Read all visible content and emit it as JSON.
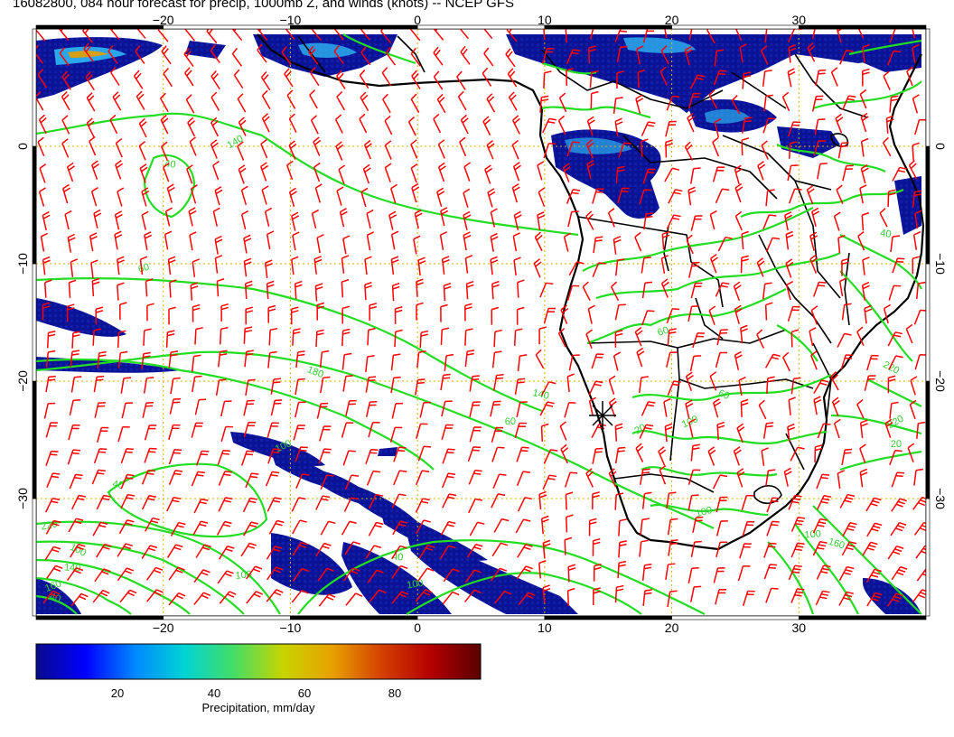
{
  "title": "16082800, 084 hour forecast for precip, 1000mb Z, and winds (knots) -- NCEP GFS",
  "axes": {
    "lon_ticks": [
      -20,
      -10,
      0,
      10,
      20,
      30
    ],
    "lat_ticks": [
      0,
      -10,
      -20,
      -30
    ],
    "lon_range": [
      -30,
      40
    ],
    "lat_range": [
      -40,
      10
    ]
  },
  "contour_labels": [
    "140",
    "40",
    "60",
    "180",
    "60",
    "100",
    "40",
    "220",
    "100",
    "140",
    "160",
    "160",
    "100",
    "220",
    "40",
    "100",
    "60",
    "20",
    "100",
    "140",
    "100",
    "220",
    "40",
    "60",
    "40",
    "100",
    "20"
  ],
  "colorbar": {
    "label": "Precipitation, mm/day",
    "ticks": [
      "20",
      "40",
      "60",
      "80"
    ],
    "colors": [
      "#0a0a8c",
      "#0000ff",
      "#0088ff",
      "#00d4d4",
      "#44dd66",
      "#c8d400",
      "#e8a000",
      "#d44000",
      "#b40000",
      "#5a0000"
    ]
  },
  "colors": {
    "contour": "#22dd22",
    "wind": "#ff0000",
    "coast": "#000000",
    "grid": "#d4b000"
  },
  "icons": [
    "wind-barb-icon",
    "storm-marker-icon"
  ]
}
